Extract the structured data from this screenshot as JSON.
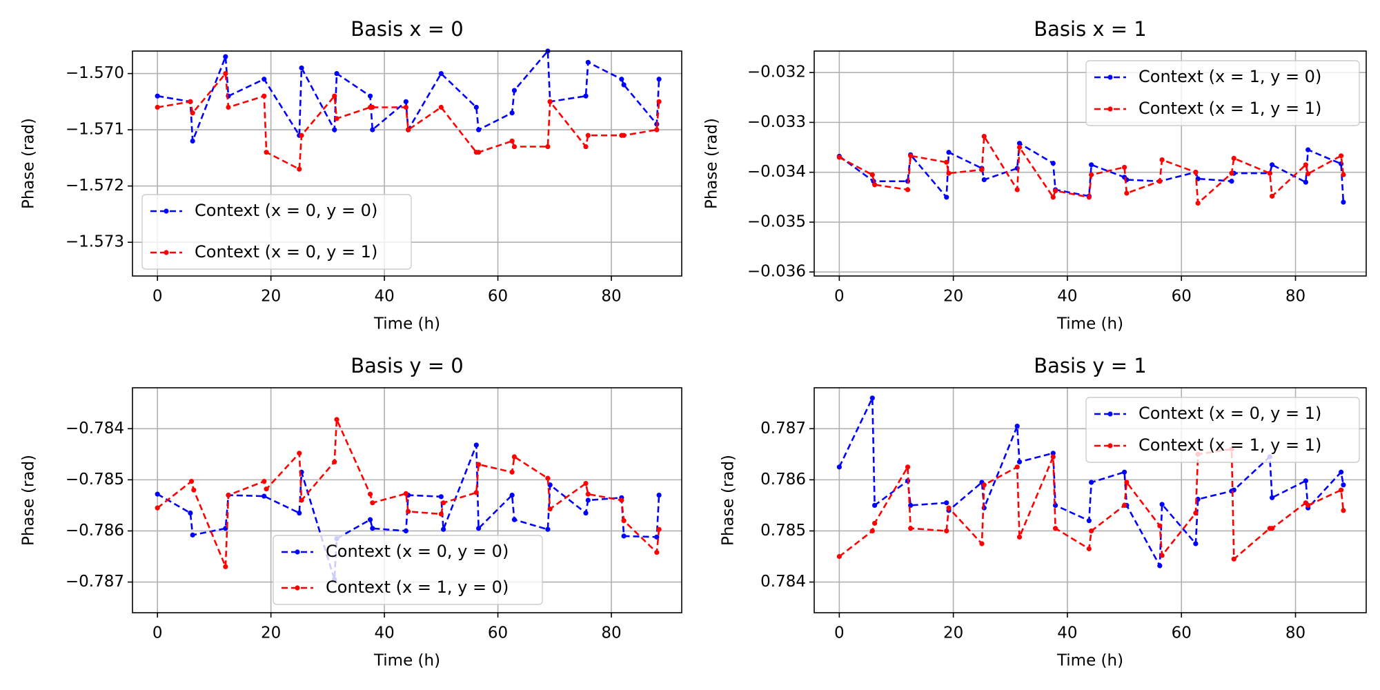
{
  "chart_data": [
    {
      "type": "line",
      "title": "Basis x = 0",
      "xlabel": "Time (h)",
      "ylabel": "Phase (rad)",
      "xlim": [
        -4.4,
        92.4
      ],
      "ylim": [
        -1.5736,
        -1.5696
      ],
      "xticks": [
        0,
        20,
        40,
        60,
        80
      ],
      "yticks": [
        -1.573,
        -1.572,
        -1.571,
        -1.57
      ],
      "ytick_labels": [
        "−1.573",
        "−1.572",
        "−1.571",
        "−1.570"
      ],
      "xtick_labels": [
        "0",
        "20",
        "40",
        "60",
        "80"
      ],
      "grid": true,
      "legend_position": "lower-left",
      "series": [
        {
          "name": "Context (x = 0, y = 0)",
          "color": "#0000ff",
          "x": [
            0,
            5.8,
            6.2,
            12.0,
            12.5,
            18.8,
            25.0,
            25.4,
            31.2,
            31.6,
            37.5,
            37.9,
            43.8,
            44.2,
            50.0,
            56.2,
            56.6,
            62.5,
            62.9,
            68.8,
            69.2,
            75.5,
            75.9,
            81.8,
            82.2,
            88.0,
            88.4
          ],
          "y": [
            -1.5704,
            -1.5705,
            -1.5712,
            -1.5697,
            -1.5704,
            -1.5701,
            -1.5711,
            -1.5699,
            -1.571,
            -1.57,
            -1.5704,
            -1.571,
            -1.5705,
            -1.571,
            -1.57,
            -1.5706,
            -1.571,
            -1.5707,
            -1.5703,
            -1.5696,
            -1.5705,
            -1.5704,
            -1.5698,
            -1.5701,
            -1.5702,
            -1.5709,
            -1.5701
          ]
        },
        {
          "name": "Context (x = 0, y = 1)",
          "color": "#ff0000",
          "x": [
            0,
            5.8,
            6.2,
            12.0,
            12.5,
            18.8,
            19.2,
            25.0,
            25.4,
            31.2,
            31.6,
            37.5,
            37.9,
            43.8,
            44.2,
            50.0,
            56.2,
            56.6,
            62.5,
            62.9,
            68.8,
            69.2,
            75.5,
            75.9,
            81.8,
            82.2,
            88.0,
            88.4
          ],
          "y": [
            -1.5706,
            -1.5705,
            -1.5707,
            -1.57,
            -1.5706,
            -1.5704,
            -1.5714,
            -1.5717,
            -1.5711,
            -1.5704,
            -1.5708,
            -1.5706,
            -1.5706,
            -1.5706,
            -1.571,
            -1.5706,
            -1.5714,
            -1.5714,
            -1.5712,
            -1.5713,
            -1.5713,
            -1.5705,
            -1.5713,
            -1.5711,
            -1.5711,
            -1.5711,
            -1.571,
            -1.5705
          ]
        }
      ]
    },
    {
      "type": "line",
      "title": "Basis x = 1",
      "xlabel": "Time (h)",
      "ylabel": "Phase (rad)",
      "xlim": [
        -4.4,
        92.4
      ],
      "ylim": [
        -0.03608,
        -0.03157
      ],
      "xticks": [
        0,
        20,
        40,
        60,
        80
      ],
      "yticks": [
        -0.036,
        -0.035,
        -0.034,
        -0.033,
        -0.032
      ],
      "ytick_labels": [
        "−0.036",
        "−0.035",
        "−0.034",
        "−0.033",
        "−0.032"
      ],
      "xtick_labels": [
        "0",
        "20",
        "40",
        "60",
        "80"
      ],
      "grid": true,
      "legend_position": "upper-right",
      "series": [
        {
          "name": "Context (x = 1, y = 0)",
          "color": "#0000ff",
          "x": [
            0,
            6.0,
            12.0,
            12.5,
            18.8,
            19.2,
            25.0,
            25.4,
            31.2,
            31.6,
            37.5,
            37.9,
            43.8,
            44.2,
            50.0,
            50.4,
            56.2,
            62.5,
            62.9,
            68.8,
            69.2,
            75.5,
            75.9,
            81.8,
            82.2,
            88.0,
            88.4
          ],
          "y": [
            -0.03368,
            -0.03418,
            -0.03418,
            -0.03365,
            -0.0345,
            -0.0336,
            -0.03392,
            -0.03415,
            -0.03392,
            -0.03342,
            -0.03382,
            -0.03435,
            -0.03448,
            -0.03385,
            -0.0341,
            -0.03415,
            -0.03418,
            -0.034,
            -0.03413,
            -0.03418,
            -0.03402,
            -0.03402,
            -0.03385,
            -0.0342,
            -0.03355,
            -0.03383,
            -0.0346
          ]
        },
        {
          "name": "Context (x = 1, y = 1)",
          "color": "#ff0000",
          "x": [
            0,
            5.8,
            6.2,
            12.0,
            12.5,
            18.8,
            19.2,
            25.0,
            25.4,
            31.2,
            31.6,
            37.5,
            37.9,
            43.8,
            44.2,
            50.0,
            50.4,
            56.2,
            56.6,
            62.5,
            62.9,
            68.8,
            69.2,
            75.5,
            75.9,
            81.8,
            82.2,
            88.0,
            88.4
          ],
          "y": [
            -0.0337,
            -0.03405,
            -0.03425,
            -0.03435,
            -0.03367,
            -0.0338,
            -0.03402,
            -0.03395,
            -0.03328,
            -0.03435,
            -0.0335,
            -0.0345,
            -0.03437,
            -0.0345,
            -0.03405,
            -0.0339,
            -0.03442,
            -0.03418,
            -0.03375,
            -0.034,
            -0.03462,
            -0.03402,
            -0.03372,
            -0.03402,
            -0.03448,
            -0.03385,
            -0.03403,
            -0.03367,
            -0.03405
          ]
        }
      ]
    },
    {
      "type": "line",
      "title": "Basis y = 0",
      "xlabel": "Time (h)",
      "ylabel": "Phase (rad)",
      "xlim": [
        -4.4,
        92.4
      ],
      "ylim": [
        -0.7876,
        -0.7832
      ],
      "xticks": [
        0,
        20,
        40,
        60,
        80
      ],
      "yticks": [
        -0.787,
        -0.786,
        -0.785,
        -0.784
      ],
      "ytick_labels": [
        "−0.787",
        "−0.786",
        "−0.785",
        "−0.784"
      ],
      "xtick_labels": [
        "0",
        "20",
        "40",
        "60",
        "80"
      ],
      "grid": true,
      "legend_position": "lower-center",
      "series": [
        {
          "name": "Context (x = 0, y = 0)",
          "color": "#0000ff",
          "x": [
            0,
            5.8,
            6.2,
            12.0,
            12.5,
            18.8,
            25.0,
            25.4,
            31.2,
            31.6,
            37.5,
            37.9,
            43.8,
            44.2,
            50.0,
            50.4,
            56.2,
            56.6,
            62.5,
            62.9,
            68.8,
            69.2,
            75.5,
            75.9,
            81.8,
            82.2,
            88.0,
            88.4
          ],
          "y": [
            -0.78528,
            -0.78565,
            -0.78608,
            -0.78595,
            -0.7853,
            -0.78532,
            -0.78565,
            -0.78485,
            -0.78695,
            -0.78615,
            -0.78578,
            -0.78595,
            -0.786,
            -0.7853,
            -0.78533,
            -0.78597,
            -0.78432,
            -0.78595,
            -0.7853,
            -0.78578,
            -0.78597,
            -0.7851,
            -0.78565,
            -0.7854,
            -0.78535,
            -0.7861,
            -0.78612,
            -0.7853
          ]
        },
        {
          "name": "Context (x = 1, y = 0)",
          "color": "#ff0000",
          "x": [
            0,
            6.0,
            6.4,
            12.0,
            12.5,
            18.8,
            19.2,
            25.0,
            25.4,
            31.2,
            31.6,
            37.5,
            37.9,
            43.8,
            44.2,
            50.0,
            50.4,
            56.2,
            56.6,
            62.5,
            62.9,
            68.8,
            69.2,
            75.5,
            75.9,
            81.8,
            82.2,
            88.0,
            88.4
          ],
          "y": [
            -0.78555,
            -0.78503,
            -0.7852,
            -0.7867,
            -0.7853,
            -0.78503,
            -0.78518,
            -0.78448,
            -0.7854,
            -0.78465,
            -0.78382,
            -0.78528,
            -0.78545,
            -0.78527,
            -0.78562,
            -0.78567,
            -0.78545,
            -0.78525,
            -0.7847,
            -0.78485,
            -0.78455,
            -0.78497,
            -0.78557,
            -0.78507,
            -0.78528,
            -0.7854,
            -0.7858,
            -0.78642,
            -0.78597
          ]
        }
      ]
    },
    {
      "type": "line",
      "title": "Basis y = 1",
      "xlabel": "Time (h)",
      "ylabel": "Phase (rad)",
      "xlim": [
        -4.4,
        92.4
      ],
      "ylim": [
        0.7834,
        0.7878
      ],
      "xticks": [
        0,
        20,
        40,
        60,
        80
      ],
      "yticks": [
        0.784,
        0.785,
        0.786,
        0.787
      ],
      "ytick_labels": [
        "0.784",
        "0.785",
        "0.786",
        "0.787"
      ],
      "xtick_labels": [
        "0",
        "20",
        "40",
        "60",
        "80"
      ],
      "grid": true,
      "legend_position": "upper-right",
      "series": [
        {
          "name": "Context (x = 0, y = 1)",
          "color": "#0000ff",
          "x": [
            0,
            5.8,
            6.2,
            12.0,
            12.5,
            18.8,
            19.2,
            25.0,
            25.4,
            31.2,
            31.6,
            37.5,
            37.9,
            43.8,
            44.2,
            50.0,
            50.4,
            56.2,
            56.6,
            62.5,
            62.9,
            68.8,
            69.2,
            75.5,
            75.9,
            81.8,
            82.2,
            88.0,
            88.4
          ],
          "y": [
            0.78625,
            0.7876,
            0.7855,
            0.78598,
            0.7855,
            0.78555,
            0.7854,
            0.78595,
            0.78545,
            0.78705,
            0.78635,
            0.78652,
            0.7855,
            0.7852,
            0.78595,
            0.78615,
            0.7855,
            0.78432,
            0.78552,
            0.78475,
            0.78562,
            0.78578,
            0.7858,
            0.78645,
            0.78565,
            0.78598,
            0.78545,
            0.78615,
            0.7859
          ]
        },
        {
          "name": "Context (x = 1, y = 1)",
          "color": "#ff0000",
          "x": [
            0,
            5.8,
            6.2,
            12.0,
            12.5,
            18.8,
            19.2,
            25.0,
            25.4,
            31.2,
            31.6,
            37.5,
            37.9,
            43.8,
            44.2,
            50.0,
            50.4,
            56.2,
            56.6,
            62.5,
            62.9,
            68.8,
            69.2,
            75.5,
            75.9,
            81.8,
            82.2,
            88.0,
            88.4
          ],
          "y": [
            0.7845,
            0.785,
            0.78515,
            0.78625,
            0.78505,
            0.785,
            0.78545,
            0.78475,
            0.7859,
            0.78625,
            0.78488,
            0.78645,
            0.78505,
            0.78465,
            0.785,
            0.7855,
            0.78595,
            0.7851,
            0.78452,
            0.78535,
            0.7865,
            0.7866,
            0.78445,
            0.78505,
            0.78505,
            0.78555,
            0.7855,
            0.7858,
            0.7854
          ]
        }
      ]
    }
  ]
}
